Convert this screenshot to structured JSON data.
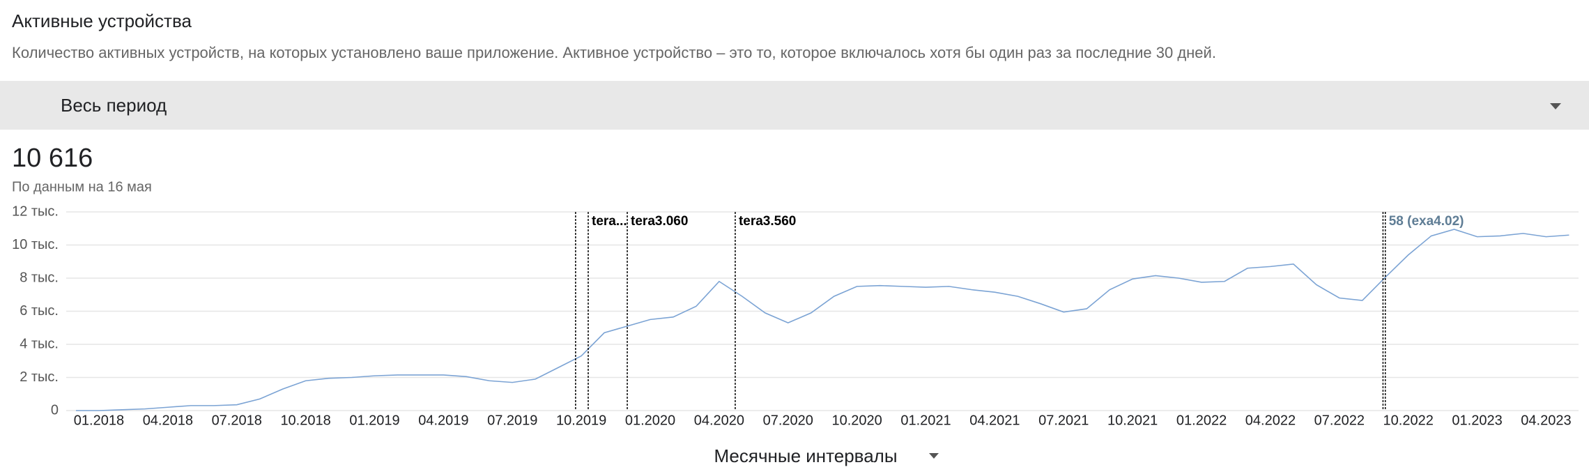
{
  "header": {
    "title": "Активные устройства",
    "description": "Количество активных устройств, на которых установлено ваше приложение. Активное устройство – это то, которое включалось хотя бы один раз за последние 30 дней."
  },
  "period": "Весь период",
  "summary": {
    "value": "10 616",
    "note": "По данным на 16 мая"
  },
  "interval": "Месячные интервалы",
  "chart_data": {
    "type": "line",
    "categories": [
      null,
      "01.2018",
      null,
      null,
      "04.2018",
      null,
      null,
      "07.2018",
      null,
      null,
      "10.2018",
      null,
      null,
      "01.2019",
      null,
      null,
      "04.2019",
      null,
      null,
      "07.2019",
      null,
      null,
      "10.2019",
      null,
      null,
      "01.2020",
      null,
      null,
      "04.2020",
      null,
      null,
      "07.2020",
      null,
      null,
      "10.2020",
      null,
      null,
      "01.2021",
      null,
      null,
      "04.2021",
      null,
      null,
      "07.2021",
      null,
      null,
      "10.2021",
      null,
      null,
      "01.2022",
      null,
      null,
      "04.2022",
      null,
      null,
      "07.2022",
      null,
      null,
      "10.2022",
      null,
      null,
      "01.2023",
      null,
      null,
      "04.2023",
      null
    ],
    "series": [
      {
        "color": "#7ba3d4",
        "values": [
          0,
          0,
          50,
          100,
          200,
          300,
          300,
          350,
          700,
          1300,
          1800,
          1950,
          2000,
          2100,
          2150,
          2150,
          2150,
          2050,
          1800,
          1700,
          1900,
          2600,
          3300,
          4700,
          5100,
          5500,
          5650,
          6300,
          7800,
          6900,
          5900,
          5300,
          5900,
          6900,
          7500,
          7550,
          7500,
          7450,
          7500,
          7300,
          7150,
          6900,
          6450,
          5950,
          6150,
          7300,
          7950,
          8150,
          8000,
          7750,
          7800,
          8600,
          8700,
          8850,
          7600,
          6800,
          6650,
          8050,
          9400,
          10550,
          10950,
          10500,
          10550,
          10700,
          10500,
          10600
        ]
      }
    ],
    "ylim": [
      0,
      12000
    ],
    "yticks": [
      0,
      {
        "value": 2000,
        "label": "2 тыс."
      },
      {
        "value": 4000,
        "label": "4 тыс."
      },
      {
        "value": 6000,
        "label": "6 тыс."
      },
      {
        "value": 8000,
        "label": "8 тыс."
      },
      {
        "value": 10000,
        "label": "10 тыс."
      },
      {
        "value": 12000,
        "label": "12 тыс."
      }
    ],
    "grid": true,
    "annotations": [
      {
        "x": 21.75
      },
      {
        "x": 22.3,
        "label": "tera..."
      },
      {
        "x": 24.0,
        "label": "tera3.060"
      },
      {
        "x": 28.7,
        "label": "tera3.560"
      },
      {
        "x": 56.9
      },
      {
        "x": 57.0,
        "label": "58 (exa4.02)",
        "color": "#5f7d95"
      }
    ]
  }
}
